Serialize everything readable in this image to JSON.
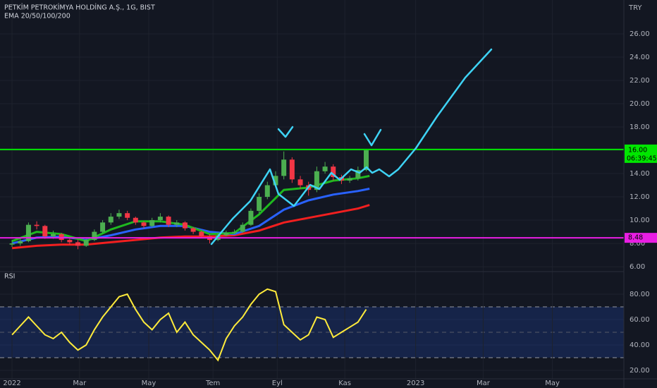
{
  "chart_data": [
    {
      "type": "candlestick",
      "title": "PETKİM PETROKİMYA HOLDİNG A.Ş., 1G, BIST",
      "subtitle": "EMA 20/50/100/200",
      "currency": "TRY",
      "up_color": "#4caf50",
      "down_color": "#f23645",
      "x": [
        0,
        5,
        10,
        15,
        20,
        25,
        30,
        35,
        40,
        45,
        50,
        55,
        60,
        65,
        70,
        75,
        80,
        85,
        90,
        95,
        100,
        105,
        110,
        115,
        120,
        125,
        130,
        135,
        140,
        145,
        150,
        155,
        160,
        165,
        170,
        175,
        180,
        185,
        190,
        195,
        200,
        205,
        210,
        215
      ],
      "open": [
        7.9,
        8.0,
        8.2,
        9.6,
        9.5,
        8.6,
        8.8,
        8.3,
        8.1,
        7.8,
        8.3,
        9.0,
        9.8,
        10.3,
        10.6,
        10.2,
        9.8,
        9.5,
        10.0,
        10.3,
        9.6,
        9.8,
        9.3,
        9.0,
        8.6,
        8.3,
        8.7,
        8.9,
        9.0,
        9.6,
        10.8,
        12.0,
        13.0,
        13.8,
        15.2,
        13.5,
        13.0,
        12.6,
        14.2,
        14.6,
        13.7,
        13.4,
        13.6,
        14.3
      ],
      "high": [
        8.3,
        8.4,
        9.8,
        9.9,
        9.6,
        9.1,
        8.9,
        8.4,
        8.3,
        8.5,
        9.2,
        10.0,
        10.6,
        10.9,
        10.8,
        10.3,
        9.9,
        10.2,
        10.6,
        10.4,
        10.0,
        9.9,
        9.4,
        9.1,
        8.8,
        8.9,
        9.1,
        9.2,
        9.8,
        11.0,
        12.3,
        13.3,
        14.2,
        15.9,
        15.4,
        13.8,
        13.3,
        14.6,
        15.0,
        14.8,
        13.9,
        13.8,
        14.6,
        16.1
      ],
      "low": [
        7.7,
        7.8,
        8.1,
        9.2,
        8.4,
        8.4,
        8.1,
        7.9,
        7.5,
        7.7,
        8.2,
        8.9,
        9.6,
        10.1,
        10.0,
        9.6,
        9.3,
        9.4,
        9.8,
        9.4,
        9.4,
        9.1,
        8.8,
        8.5,
        8.0,
        8.2,
        8.6,
        8.8,
        8.9,
        9.5,
        10.6,
        11.8,
        12.8,
        13.5,
        13.2,
        12.7,
        12.1,
        12.4,
        14.0,
        13.4,
        13.1,
        13.2,
        13.4,
        14.2
      ],
      "close": [
        8.0,
        8.2,
        9.6,
        9.5,
        8.6,
        8.8,
        8.3,
        8.1,
        7.8,
        8.3,
        9.0,
        9.8,
        10.3,
        10.6,
        10.2,
        9.8,
        9.5,
        10.0,
        10.3,
        9.6,
        9.8,
        9.3,
        9.0,
        8.6,
        8.3,
        8.7,
        8.9,
        9.0,
        9.6,
        10.8,
        12.0,
        13.0,
        13.8,
        15.2,
        13.5,
        13.0,
        12.6,
        14.2,
        14.6,
        13.7,
        13.4,
        13.6,
        14.3,
        16.0
      ],
      "series": [
        {
          "color": "#f21f1f",
          "x": [
            0,
            15,
            30,
            45,
            60,
            75,
            90,
            105,
            120,
            135,
            150,
            165,
            180,
            195,
            210,
            217
          ],
          "values": [
            7.6,
            7.8,
            7.9,
            7.9,
            8.1,
            8.3,
            8.5,
            8.6,
            8.6,
            8.7,
            9.1,
            9.8,
            10.2,
            10.6,
            11.0,
            11.3
          ]
        },
        {
          "color": "#2962ff",
          "x": [
            0,
            15,
            30,
            45,
            60,
            75,
            90,
            105,
            120,
            135,
            150,
            165,
            180,
            195,
            210,
            217
          ],
          "values": [
            8.0,
            8.5,
            8.6,
            8.3,
            8.7,
            9.2,
            9.5,
            9.5,
            9.0,
            8.8,
            9.5,
            10.9,
            11.7,
            12.2,
            12.5,
            12.7
          ]
        },
        {
          "color": "#1fb81f",
          "x": [
            0,
            15,
            30,
            45,
            60,
            75,
            90,
            105,
            120,
            135,
            150,
            165,
            180,
            195,
            210,
            217
          ],
          "values": [
            8.2,
            9.0,
            8.8,
            8.2,
            9.2,
            9.9,
            9.9,
            9.6,
            8.8,
            8.9,
            10.5,
            12.6,
            12.8,
            13.4,
            13.6,
            13.8
          ]
        }
      ],
      "levels": [
        {
          "value": 16.07,
          "color": "#00e600"
        },
        {
          "value": 8.48,
          "color": "#e91ee3"
        }
      ],
      "countdown": "06:39:45",
      "price_tag": {
        "value": 16,
        "label": "16.00"
      },
      "xlim": [
        -7.3,
        371.4
      ],
      "ylim": [
        5.58,
        28.91
      ],
      "yticks": [
        {
          "value": 6,
          "label": "6.00"
        },
        {
          "value": 8,
          "label": "8.00"
        },
        {
          "value": 10,
          "label": "10.00"
        },
        {
          "value": 12,
          "label": "12.00"
        },
        {
          "value": 14,
          "label": "14.00"
        },
        {
          "value": 16,
          "label": "16.00"
        },
        {
          "value": 18,
          "label": "18.00"
        },
        {
          "value": 20,
          "label": "20.00"
        },
        {
          "value": 22,
          "label": "22.00"
        },
        {
          "value": 24,
          "label": "24.00"
        },
        {
          "value": 26,
          "label": "26.00"
        }
      ],
      "grid": true
    },
    {
      "type": "line",
      "title": "RSI",
      "color": "#ffeb3b",
      "x": [
        0,
        5,
        10,
        15,
        20,
        25,
        30,
        35,
        40,
        45,
        50,
        55,
        60,
        65,
        70,
        75,
        80,
        85,
        90,
        95,
        100,
        105,
        110,
        115,
        120,
        125,
        130,
        135,
        140,
        145,
        150,
        155,
        160,
        165,
        170,
        175,
        180,
        185,
        190,
        195,
        200,
        205,
        210,
        215
      ],
      "values": [
        48,
        55,
        62,
        55,
        48,
        45,
        50,
        42,
        36,
        40,
        52,
        62,
        70,
        78,
        80,
        68,
        58,
        52,
        60,
        65,
        50,
        58,
        48,
        42,
        36,
        28,
        45,
        55,
        62,
        72,
        80,
        84,
        82,
        56,
        50,
        44,
        48,
        62,
        60,
        46,
        50,
        54,
        58,
        68
      ],
      "bands": [
        70,
        50,
        30
      ],
      "xlim": [
        -7.3,
        371.4
      ],
      "ylim": [
        13.3,
        97.8
      ],
      "yticks": [
        {
          "value": 20,
          "label": "20.00"
        },
        {
          "value": 40,
          "label": "40.00"
        },
        {
          "value": 60,
          "label": "60.00"
        },
        {
          "value": 80,
          "label": "80.00"
        }
      ],
      "xticks": [
        {
          "value": 0,
          "label": "2022"
        },
        {
          "value": 41,
          "label": "Mar"
        },
        {
          "value": 83,
          "label": "May"
        },
        {
          "value": 122,
          "label": "Tem"
        },
        {
          "value": 161,
          "label": "Eyl"
        },
        {
          "value": 202,
          "label": "Kas"
        },
        {
          "value": 245,
          "label": "2023"
        },
        {
          "value": 286,
          "label": "Mar"
        },
        {
          "value": 328,
          "label": "May"
        }
      ],
      "grid": true
    }
  ]
}
